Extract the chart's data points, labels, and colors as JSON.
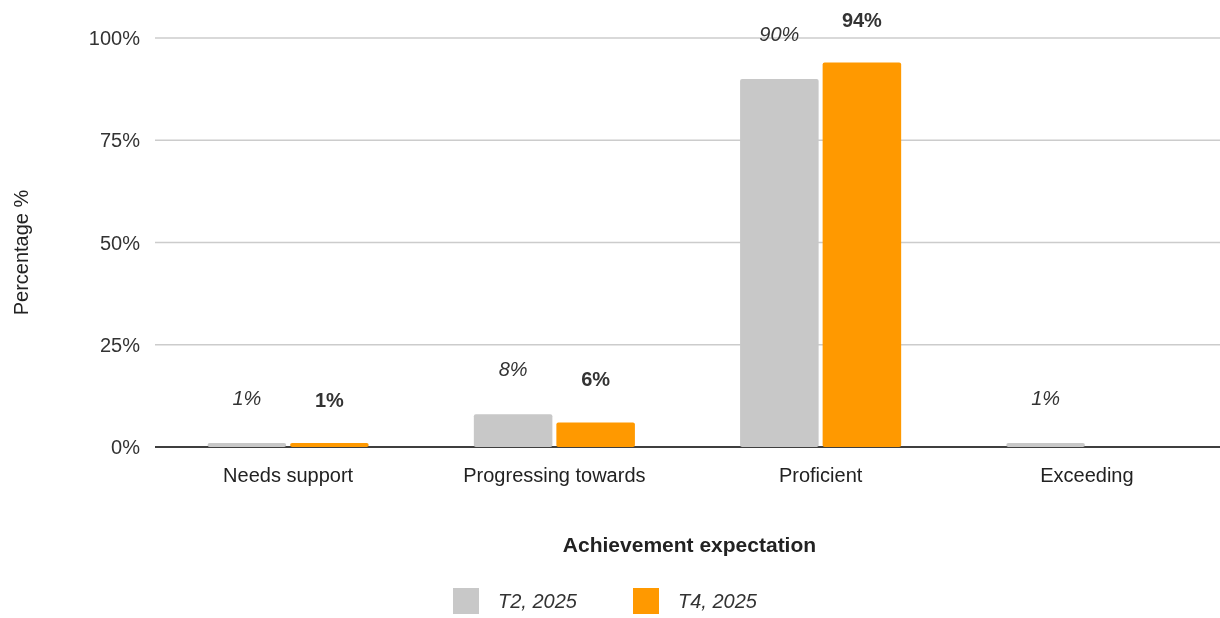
{
  "chart_data": {
    "type": "bar",
    "xlabel": "Achievement expectation",
    "ylabel": "Percentage %",
    "categories": [
      "Needs support",
      "Progressing towards",
      "Proficient",
      "Exceeding"
    ],
    "series": [
      {
        "name": "T2, 2025",
        "color": "#c8c8c8",
        "values": [
          1,
          8,
          90,
          1
        ],
        "value_labels": [
          "1%",
          "8%",
          "90%",
          "1%"
        ]
      },
      {
        "name": "T4, 2025",
        "color": "#ff9900",
        "values": [
          1,
          6,
          94,
          null
        ],
        "value_labels": [
          "1%",
          "6%",
          "94%",
          null
        ]
      }
    ],
    "ylim": [
      0,
      100
    ],
    "yticks": [
      {
        "value": 0,
        "label": "0%"
      },
      {
        "value": 25,
        "label": "25%"
      },
      {
        "value": 50,
        "label": "50%"
      },
      {
        "value": 75,
        "label": "75%"
      },
      {
        "value": 100,
        "label": "100%"
      }
    ],
    "grid": "y",
    "legend": "bottom"
  }
}
